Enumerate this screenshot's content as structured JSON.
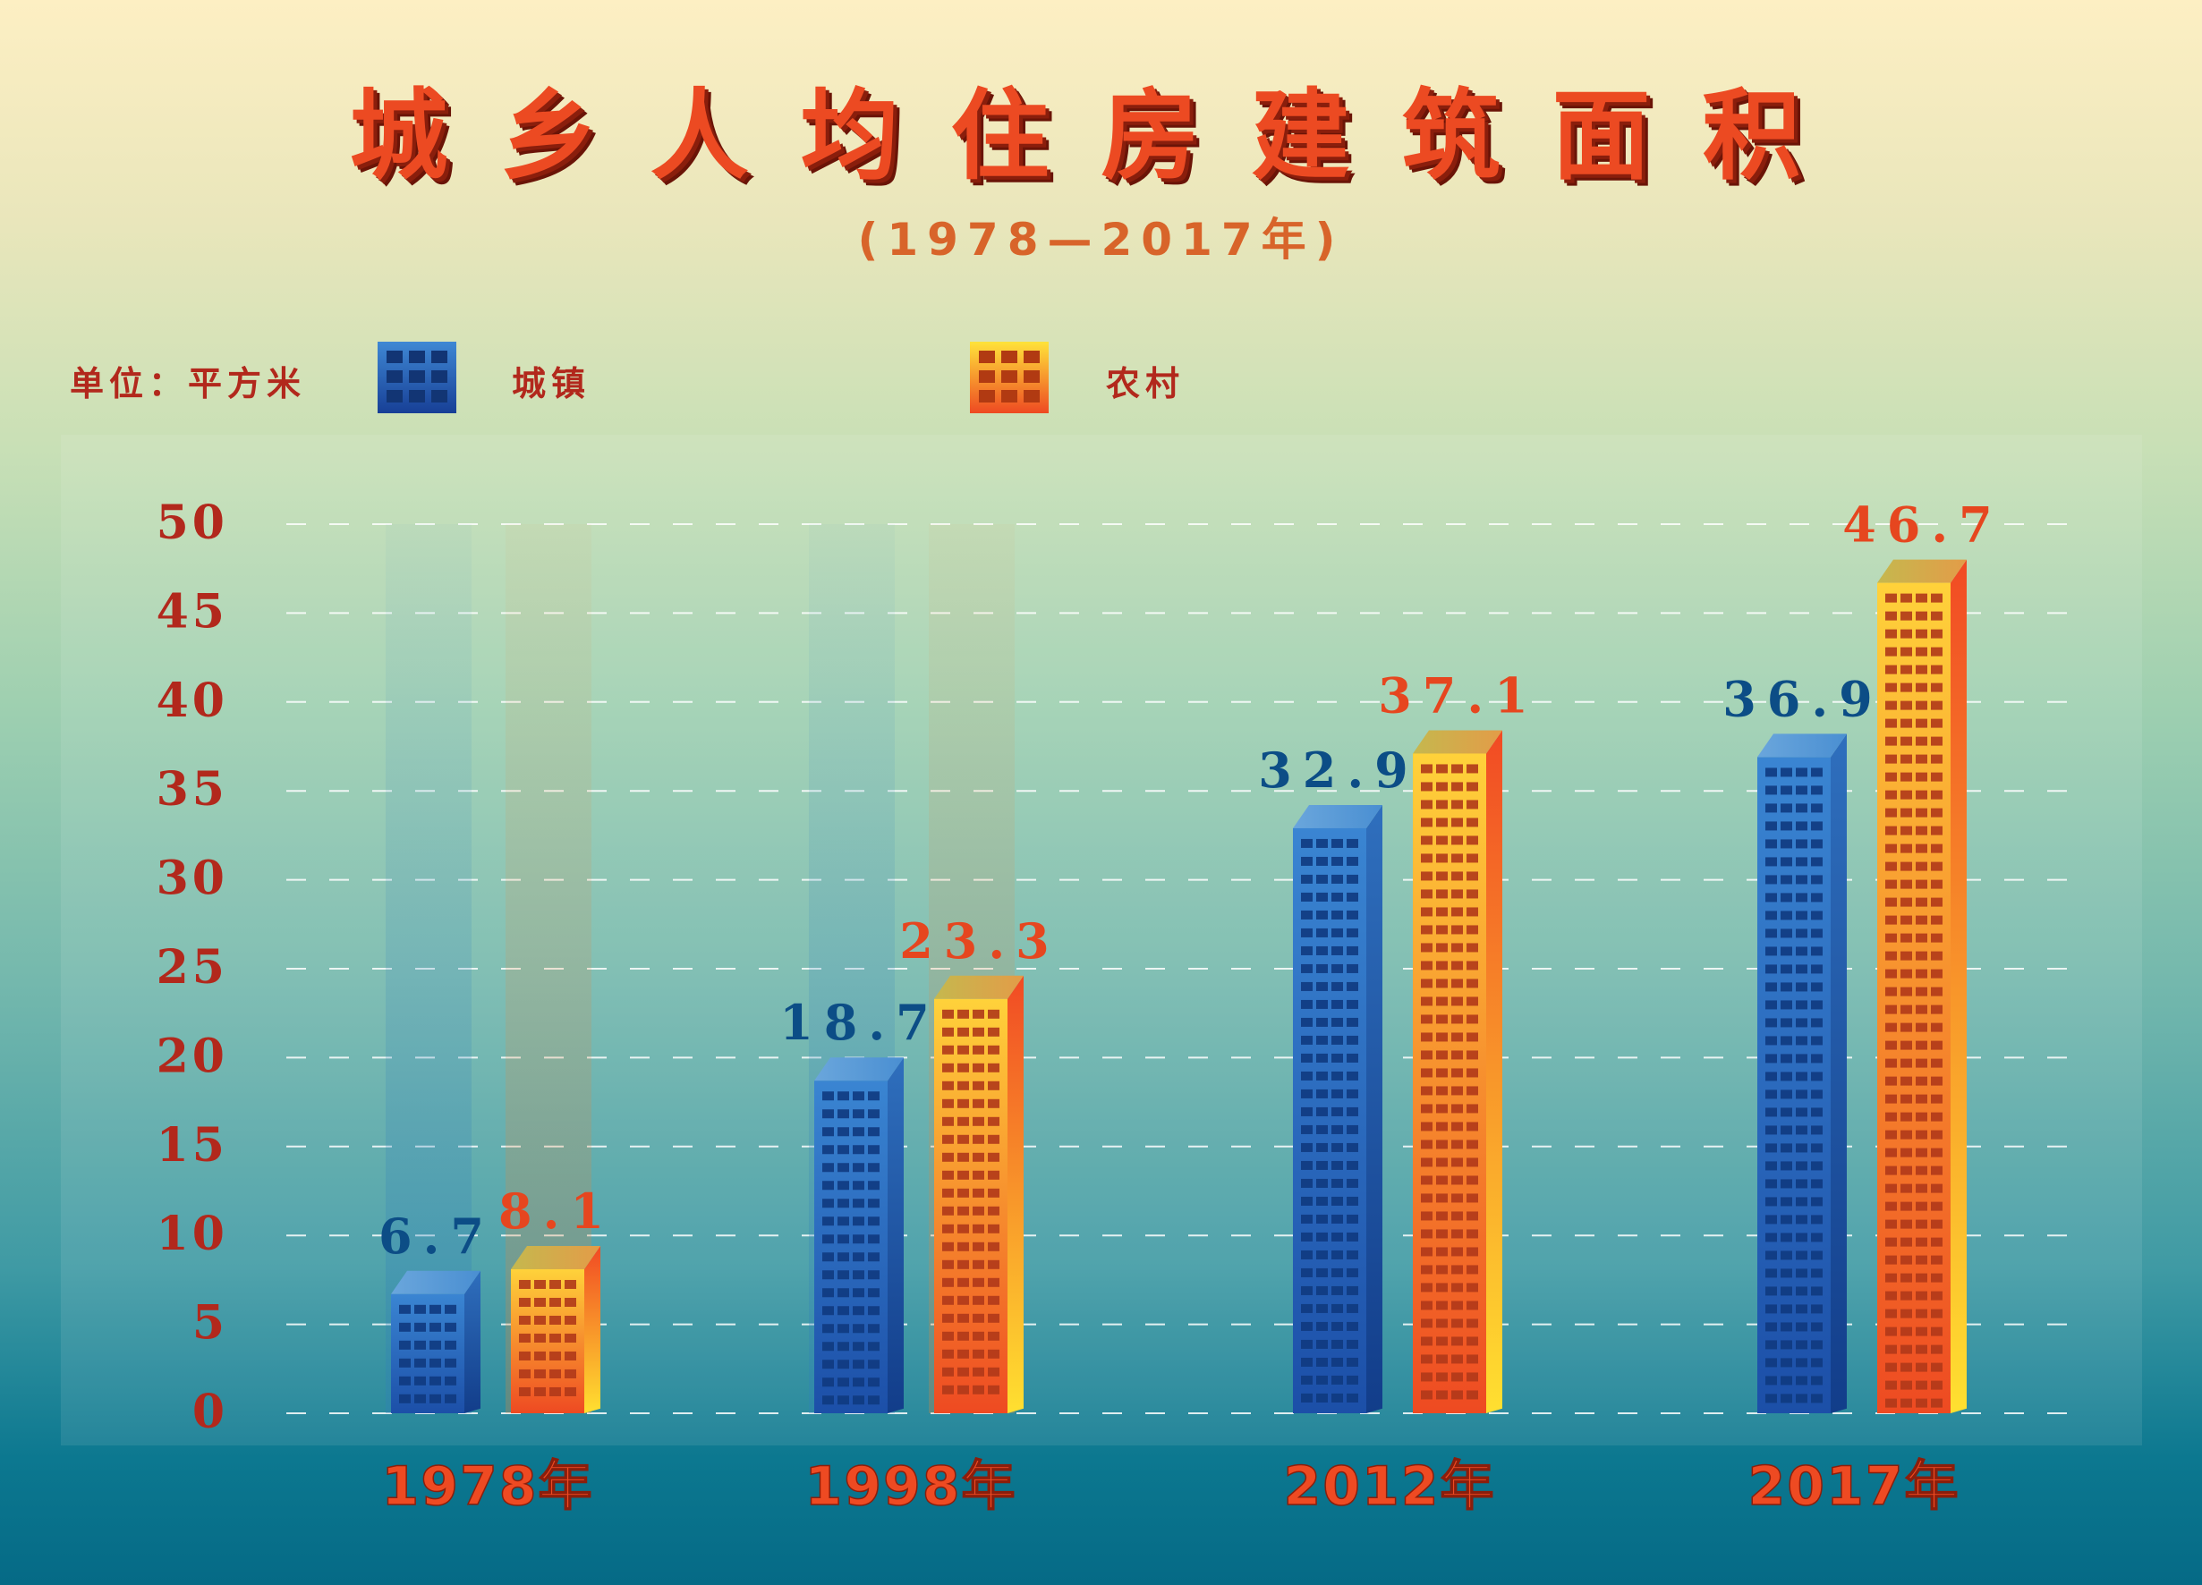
{
  "title": "城乡人均住房建筑面积",
  "subtitle": "(1978—2017年)",
  "unit_label": "单位：平方米",
  "legend": {
    "urban": "城镇",
    "rural": "农村"
  },
  "colors": {
    "urban": "#2f74c4",
    "rural": "#f4862a",
    "title": "#ec4a22",
    "axis_text": "#b2281c"
  },
  "chart_data": {
    "type": "bar",
    "categories": [
      "1978年",
      "1998年",
      "2012年",
      "2017年"
    ],
    "series": [
      {
        "name": "城镇",
        "values": [
          6.7,
          18.7,
          32.9,
          36.9
        ]
      },
      {
        "name": "农村",
        "values": [
          8.1,
          23.3,
          37.1,
          46.7
        ]
      }
    ],
    "value_labels": [
      [
        "6.7",
        "18.7",
        "32.9",
        "36.9"
      ],
      [
        "8.1",
        "23.3",
        "37.1",
        "46.7"
      ]
    ],
    "yticks": [
      "0",
      "5",
      "10",
      "15",
      "20",
      "25",
      "30",
      "35",
      "40",
      "45",
      "50"
    ],
    "ylim": [
      0,
      50
    ],
    "grid": "dashed-horizontal",
    "legend_position": "top-left"
  }
}
